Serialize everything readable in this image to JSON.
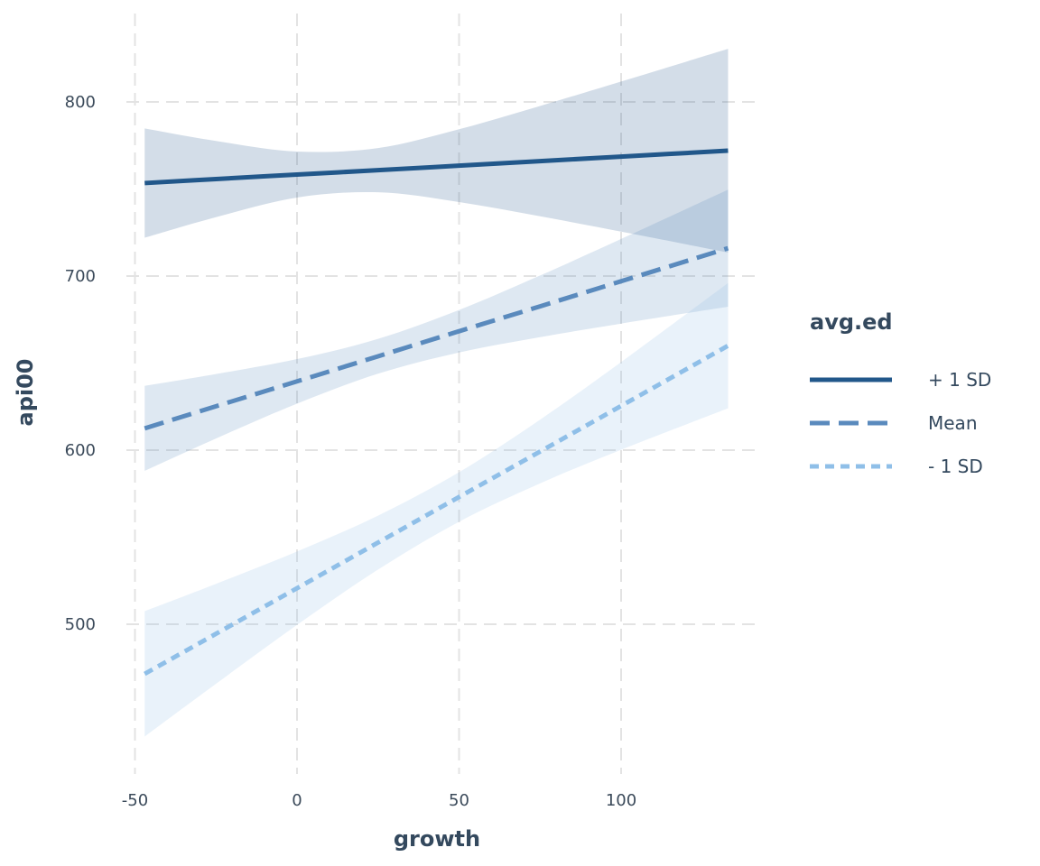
{
  "chart_data": {
    "type": "line",
    "title": "",
    "xlabel": "growth",
    "ylabel": "api00",
    "xlim": [
      -52,
      142
    ],
    "ylim": [
      418,
      848
    ],
    "x_ticks": [
      -50,
      0,
      50,
      100
    ],
    "x_tick_labels": [
      "-50",
      "0",
      "50",
      "100"
    ],
    "y_ticks": [
      500,
      600,
      700,
      800
    ],
    "y_tick_labels": [
      "500",
      "600",
      "700",
      "800"
    ],
    "grid": true,
    "legend": {
      "title": "avg.ed",
      "placement": "right"
    },
    "x": [
      -47,
      -25,
      0,
      25,
      50,
      75,
      100,
      133
    ],
    "series": [
      {
        "name": "+ 1 SD",
        "color": "#21578a",
        "dash": "solid",
        "values": [
          753.4,
          755.7,
          758.3,
          760.8,
          763.4,
          766.0,
          768.6,
          772.0
        ],
        "lower": [
          722.0,
          733.8,
          745.1,
          748.1,
          742.5,
          734.3,
          725.5,
          713.5
        ],
        "upper": [
          784.8,
          777.6,
          771.5,
          773.5,
          784.3,
          797.7,
          811.7,
          830.5
        ]
      },
      {
        "name": "Mean",
        "color": "#5a8abd",
        "dash": "dashed",
        "values": [
          612.5,
          625.2,
          639.5,
          653.9,
          668.3,
          682.6,
          697.0,
          716.0
        ],
        "lower": [
          588.1,
          606.7,
          626.7,
          643.9,
          656.1,
          664.9,
          672.7,
          682.4
        ],
        "upper": [
          636.9,
          643.7,
          652.3,
          663.9,
          680.5,
          700.3,
          721.3,
          749.6
        ]
      },
      {
        "name": "- 1 SD",
        "color": "#8fbfe8",
        "dash": "dotted",
        "values": [
          471.5,
          494.5,
          520.7,
          546.9,
          573.1,
          599.2,
          625.4,
          660.0
        ],
        "lower": [
          435.5,
          465.8,
          499.6,
          531.4,
          558.9,
          580.9,
          600.2,
          624.0
        ],
        "upper": [
          507.5,
          523.2,
          541.8,
          562.4,
          587.3,
          617.5,
          650.6,
          696.0
        ]
      }
    ]
  }
}
